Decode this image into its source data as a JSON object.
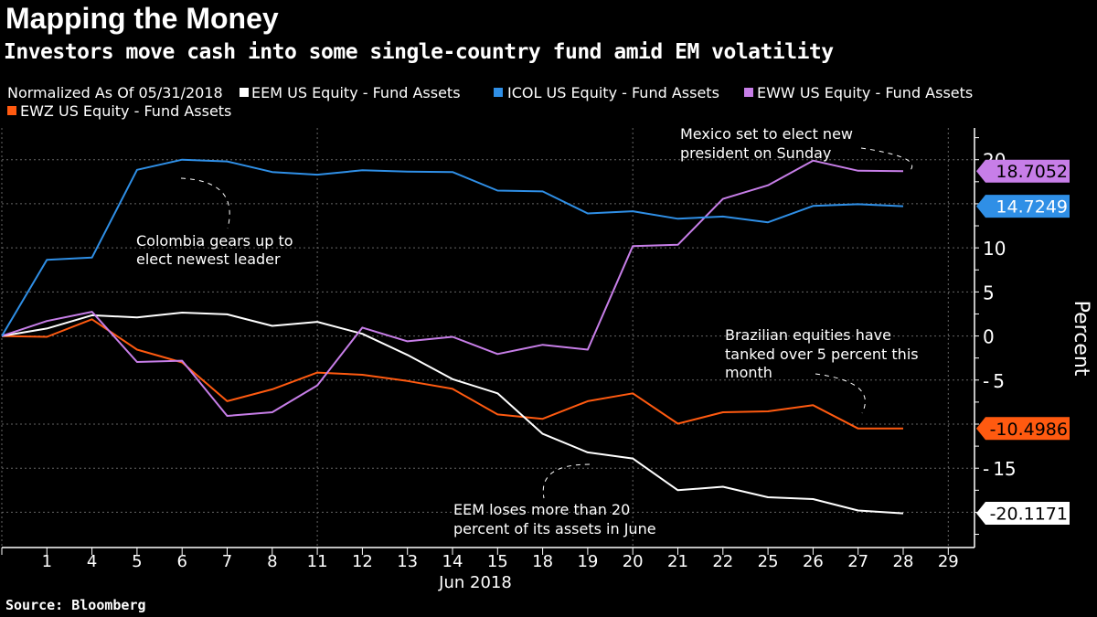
{
  "title": "Mapping the Money",
  "subtitle": "Investors move cash into some single-country fund amid EM volatility",
  "source": "Source: Bloomberg",
  "legend": {
    "prefix": "Normalized As Of 05/31/2018",
    "items": [
      {
        "label": "EEM US Equity - Fund Assets",
        "color": "#ffffff"
      },
      {
        "label": "ICOL US Equity - Fund Assets",
        "color": "#2f8fe6"
      },
      {
        "label": "EWW US Equity - Fund Assets",
        "color": "#c77ee8"
      },
      {
        "label": "EWZ US Equity - Fund Assets",
        "color": "#ff5a10"
      }
    ]
  },
  "chart_data": {
    "type": "line",
    "xlabel": "Jun 2018",
    "ylabel": "Percent",
    "x": [
      "05/31",
      "1",
      "4",
      "5",
      "6",
      "7",
      "8",
      "11",
      "12",
      "13",
      "14",
      "15",
      "18",
      "19",
      "20",
      "21",
      "22",
      "25",
      "26",
      "27",
      "28"
    ],
    "xtick_labels": [
      "1",
      "4",
      "5",
      "6",
      "7",
      "8",
      "11",
      "12",
      "13",
      "14",
      "15",
      "18",
      "19",
      "20",
      "21",
      "22",
      "25",
      "26",
      "27",
      "28",
      "29"
    ],
    "yticks": [
      20,
      10,
      5,
      0,
      -5,
      -15
    ],
    "ylim": [
      -24,
      23.6
    ],
    "grid": true,
    "y_axis_side": "right",
    "series": [
      {
        "name": "EEM US Equity - Fund Assets",
        "color": "#ffffff",
        "last_label": "-20.1171",
        "label_text_color": "#000000",
        "values": [
          0,
          0.85,
          2.35,
          2.1,
          2.65,
          2.45,
          1.15,
          1.6,
          0.25,
          -2.15,
          -4.9,
          -6.5,
          -11.1,
          -13.2,
          -13.9,
          -17.5,
          -17.1,
          -18.3,
          -18.5,
          -19.8,
          -20.1171
        ]
      },
      {
        "name": "ICOL US Equity - Fund Assets",
        "color": "#2f8fe6",
        "last_label": "14.7249",
        "label_text_color": "#ffffff",
        "values": [
          0,
          8.65,
          8.9,
          18.85,
          20.0,
          19.8,
          18.6,
          18.3,
          18.8,
          18.65,
          18.6,
          16.5,
          16.4,
          13.9,
          14.15,
          13.3,
          13.55,
          12.9,
          14.75,
          14.95,
          14.7249
        ]
      },
      {
        "name": "EWW US Equity - Fund Assets",
        "color": "#c77ee8",
        "last_label": "18.7052",
        "label_text_color": "#000000",
        "values": [
          0,
          1.7,
          2.75,
          -2.95,
          -2.8,
          -9.07,
          -8.65,
          -5.6,
          0.95,
          -0.6,
          -0.1,
          -2.05,
          -1.0,
          -1.55,
          10.2,
          10.35,
          15.55,
          17.1,
          19.9,
          18.75,
          18.7052
        ]
      },
      {
        "name": "EWZ US Equity - Fund Assets",
        "color": "#ff5a10",
        "last_label": "-10.4986",
        "label_text_color": "#000000",
        "values": [
          0,
          -0.1,
          1.9,
          -1.55,
          -3.0,
          -7.4,
          -6.05,
          -4.15,
          -4.4,
          -5.1,
          -6.0,
          -8.9,
          -9.4,
          -7.4,
          -6.5,
          -9.95,
          -8.65,
          -8.55,
          -7.85,
          -10.5,
          -10.4986
        ]
      }
    ],
    "annotations": [
      {
        "text": [
          "Mexico set to elect new",
          "president on Sunday"
        ]
      },
      {
        "text": [
          "Colombia gears up to",
          "elect newest leader"
        ]
      },
      {
        "text": [
          "Brazilian equities have",
          "tanked over 5 percent this",
          "month"
        ]
      },
      {
        "text": [
          "EEM loses more than 20",
          "percent of its assets in June"
        ]
      }
    ]
  }
}
